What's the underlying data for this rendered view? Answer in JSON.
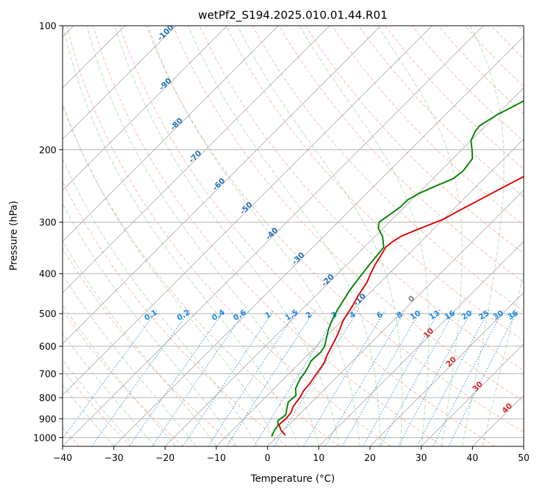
{
  "chart_data": {
    "type": "line",
    "diagram": "skew-t",
    "title": "wetPf2_S194.2025.010.01.44.R01",
    "xlabel": "Temperature (°C)",
    "ylabel": "Pressure (hPa)",
    "xlim": [
      -40,
      50
    ],
    "ylim": [
      1050,
      100
    ],
    "yscale": "log",
    "x_ticks": [
      "−40",
      "−30",
      "−20",
      "−10",
      "0",
      "10",
      "20",
      "30",
      "40",
      "50"
    ],
    "y_ticks": [
      "100",
      "200",
      "300",
      "400",
      "500",
      "600",
      "700",
      "800",
      "900",
      "1000"
    ],
    "grid": true,
    "series": [
      {
        "color": "#e00000",
        "role": "temperature",
        "points": [
          [
            1.2,
            985
          ],
          [
            -0.5,
            960
          ],
          [
            -2.0,
            930
          ],
          [
            -1.8,
            900
          ],
          [
            -2.0,
            870
          ],
          [
            -2.8,
            840
          ],
          [
            -3.2,
            800
          ],
          [
            -3.8,
            770
          ],
          [
            -4.0,
            740
          ],
          [
            -4.6,
            700
          ],
          [
            -5.2,
            660
          ],
          [
            -6.2,
            630
          ],
          [
            -7.0,
            600
          ],
          [
            -8.2,
            560
          ],
          [
            -9.8,
            520
          ],
          [
            -10.8,
            480
          ],
          [
            -11.8,
            450
          ],
          [
            -12.6,
            420
          ],
          [
            -13.6,
            400
          ],
          [
            -14.5,
            380
          ],
          [
            -15.2,
            360
          ],
          [
            -15.8,
            345
          ],
          [
            -15.6,
            335
          ],
          [
            -15.0,
            325
          ],
          [
            -13.5,
            315
          ],
          [
            -11.8,
            305
          ],
          [
            -10.0,
            295
          ],
          [
            -8.5,
            280
          ],
          [
            -6.8,
            265
          ],
          [
            -5.0,
            250
          ],
          [
            -3.0,
            235
          ],
          [
            -1.0,
            220
          ],
          [
            1.5,
            205
          ],
          [
            4.0,
            190
          ],
          [
            7.0,
            175
          ],
          [
            10.0,
            160
          ],
          [
            13.0,
            150
          ],
          [
            17.0,
            140
          ],
          [
            22.0,
            130
          ],
          [
            26.0,
            123
          ],
          [
            30.0,
            115
          ],
          [
            35.0,
            107
          ],
          [
            39.0,
            100
          ]
        ]
      },
      {
        "color": "#008000",
        "role": "dewpoint",
        "points": [
          [
            -1.2,
            990
          ],
          [
            -1.8,
            960
          ],
          [
            -2.0,
            935
          ],
          [
            -3.0,
            910
          ],
          [
            -2.6,
            880
          ],
          [
            -3.6,
            850
          ],
          [
            -4.6,
            820
          ],
          [
            -4.4,
            790
          ],
          [
            -5.8,
            760
          ],
          [
            -6.8,
            720
          ],
          [
            -7.2,
            690
          ],
          [
            -8.2,
            650
          ],
          [
            -8.0,
            620
          ],
          [
            -8.4,
            600
          ],
          [
            -9.8,
            570
          ],
          [
            -11.0,
            545
          ],
          [
            -12.0,
            520
          ],
          [
            -13.0,
            490
          ],
          [
            -13.8,
            460
          ],
          [
            -14.4,
            440
          ],
          [
            -15.0,
            410
          ],
          [
            -15.6,
            380
          ],
          [
            -16.0,
            355
          ],
          [
            -16.2,
            345
          ],
          [
            -18.5,
            325
          ],
          [
            -21.0,
            310
          ],
          [
            -22.0,
            300
          ],
          [
            -21.5,
            290
          ],
          [
            -20.8,
            275
          ],
          [
            -20.8,
            265
          ],
          [
            -19.8,
            255
          ],
          [
            -18.0,
            245
          ],
          [
            -16.0,
            235
          ],
          [
            -15.6,
            225
          ],
          [
            -16.2,
            210
          ],
          [
            -18.0,
            200
          ],
          [
            -20.0,
            190
          ],
          [
            -21.0,
            180
          ],
          [
            -21.2,
            175
          ],
          [
            -20.0,
            165
          ],
          [
            -18.0,
            155
          ],
          [
            -16.0,
            145
          ],
          [
            -14.0,
            135
          ],
          [
            -11.5,
            125
          ],
          [
            -8.5,
            115
          ],
          [
            -5.0,
            107
          ],
          [
            -3.0,
            100
          ]
        ]
      }
    ],
    "overlays": {
      "dry_adiabat_labels": [
        "-100",
        "-90",
        "-80",
        "-70",
        "-60",
        "-50",
        "-40",
        "-30",
        "-20",
        "-10",
        "0",
        "10",
        "20",
        "30",
        "40"
      ],
      "mixing_ratio_labels": [
        "0.1",
        "0.2",
        "0.4",
        "0.6",
        "1",
        "1.5",
        "2",
        "3",
        "4",
        "6",
        "8",
        "10",
        "13",
        "16",
        "20",
        "25",
        "30",
        "36"
      ]
    },
    "colors": {
      "dry_adiabat": "#fa8060",
      "moist_adiabat": "#6ab26a",
      "mixing_ratio": "#1f8ae0",
      "isotherm": "#888888",
      "dry_label": "#1f6fb0",
      "warm_label": "#d62728",
      "zero_label": "#7f7f7f"
    }
  }
}
